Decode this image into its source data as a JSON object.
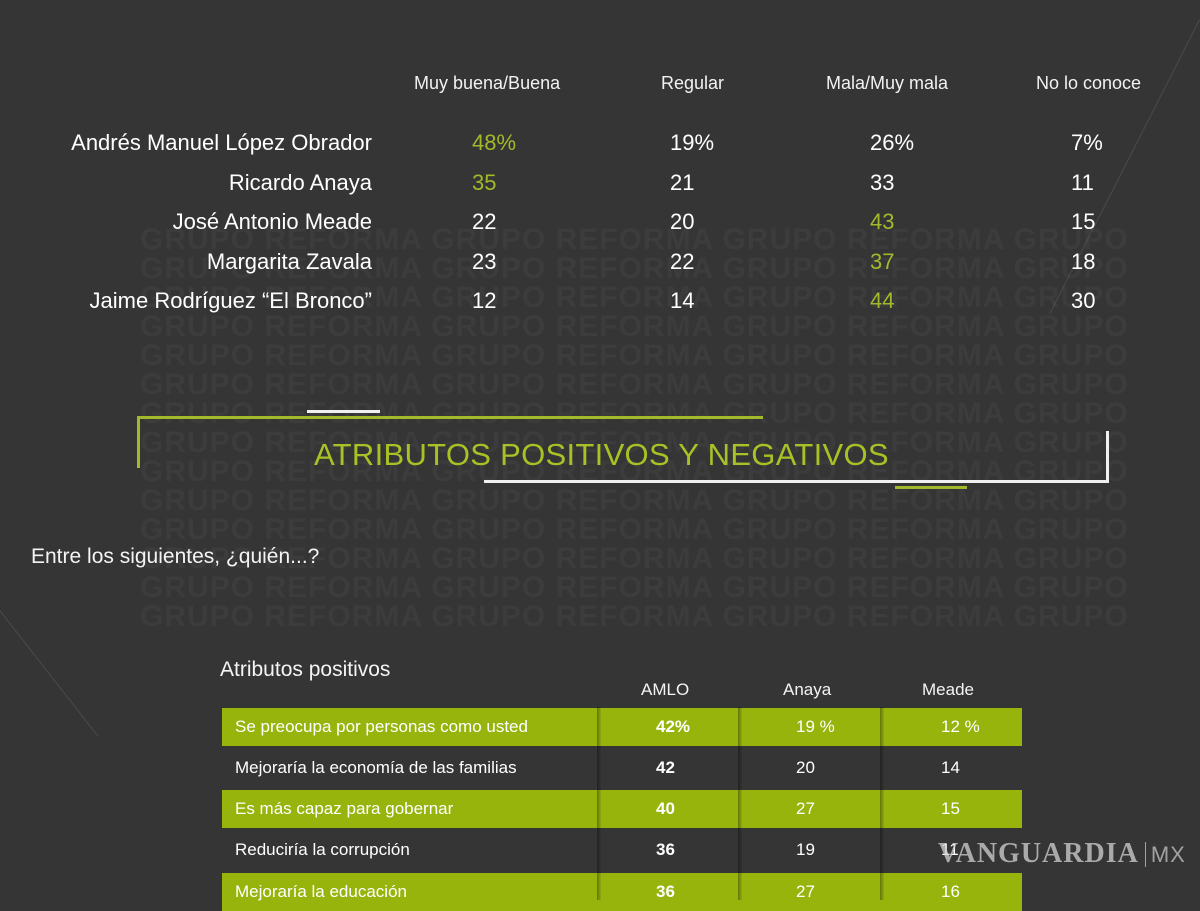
{
  "opinion_table": {
    "columns": [
      "Muy buena/Buena",
      "Regular",
      "Mala/Muy mala",
      "No lo conoce"
    ],
    "rows": [
      {
        "name": "Andrés Manuel López Obrador",
        "values": [
          "48%",
          "19%",
          "26%",
          "7%"
        ]
      },
      {
        "name": "Ricardo Anaya",
        "values": [
          "35",
          "21",
          "33",
          "11"
        ]
      },
      {
        "name": "José Antonio Meade",
        "values": [
          "22",
          "20",
          "43",
          "15"
        ]
      },
      {
        "name": "Margarita Zavala",
        "values": [
          "23",
          "22",
          "37",
          "18"
        ]
      },
      {
        "name": "Jaime Rodríguez “El Bronco”",
        "values": [
          "12",
          "14",
          "44",
          "30"
        ]
      }
    ]
  },
  "watermark": "GRUPO REFORMA",
  "section": {
    "title": "ATRIBUTOS POSITIVOS Y NEGATIVOS",
    "question": "Entre los siguientes, ¿quién...?"
  },
  "attributes_table": {
    "title": "Atributos positivos",
    "columns": [
      "AMLO",
      "Anaya",
      "Meade"
    ],
    "rows": [
      {
        "label": "Se preocupa por personas como usted",
        "values": [
          "42%",
          "19 %",
          "12 %"
        ]
      },
      {
        "label": "Mejoraría la economía de las familias",
        "values": [
          "42",
          "20",
          "14"
        ]
      },
      {
        "label": "Es más capaz para gobernar",
        "values": [
          "40",
          "27",
          "15"
        ]
      },
      {
        "label": "Reduciría la corrupción",
        "values": [
          "36",
          "19",
          "11"
        ]
      },
      {
        "label": " Mejoraría la educación",
        "values": [
          "36",
          "27",
          "16"
        ]
      }
    ]
  },
  "branding": {
    "logo": "VANGUARDIA",
    "suffix": "MX"
  },
  "colors": {
    "background": "#353535",
    "accent_green": "#96b40c",
    "highlight_text": "#a3b92a"
  }
}
